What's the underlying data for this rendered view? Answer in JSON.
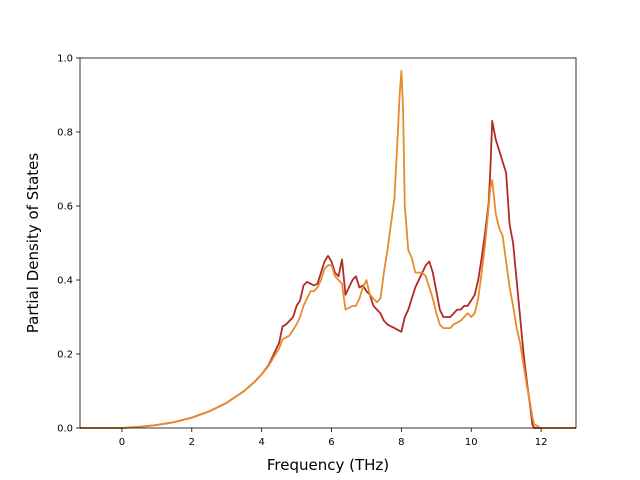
{
  "chart_data": {
    "type": "line",
    "title": "",
    "xlabel": "Frequency (THz)",
    "ylabel": "Partial Density of States",
    "xlim": [
      -1.2,
      13.0
    ],
    "ylim": [
      0.0,
      1.0
    ],
    "xticks": [
      0,
      2,
      4,
      6,
      8,
      10,
      12
    ],
    "yticks": [
      0.0,
      0.2,
      0.4,
      0.6,
      0.8,
      1.0
    ],
    "xtick_labels": [
      "0",
      "2",
      "4",
      "6",
      "8",
      "10",
      "12"
    ],
    "ytick_labels": [
      "0.0",
      "0.2",
      "0.4",
      "0.6",
      "0.8",
      "1.0"
    ],
    "grid": false,
    "legend": "none",
    "series": [
      {
        "color": "#b22a24",
        "x": [
          -1.2,
          -0.5,
          0.0,
          0.5,
          1.0,
          1.5,
          2.0,
          2.5,
          3.0,
          3.5,
          3.8,
          4.0,
          4.2,
          4.4,
          4.5,
          4.6,
          4.7,
          4.8,
          4.9,
          5.0,
          5.1,
          5.2,
          5.3,
          5.4,
          5.5,
          5.6,
          5.7,
          5.8,
          5.9,
          6.0,
          6.1,
          6.2,
          6.3,
          6.4,
          6.5,
          6.6,
          6.7,
          6.8,
          6.9,
          7.0,
          7.1,
          7.2,
          7.3,
          7.4,
          7.5,
          7.6,
          7.7,
          7.8,
          7.9,
          8.0,
          8.1,
          8.2,
          8.3,
          8.4,
          8.5,
          8.6,
          8.7,
          8.8,
          8.9,
          9.0,
          9.1,
          9.2,
          9.3,
          9.4,
          9.5,
          9.6,
          9.7,
          9.8,
          9.9,
          10.0,
          10.1,
          10.2,
          10.3,
          10.4,
          10.5,
          10.55,
          10.6,
          10.7,
          10.8,
          10.9,
          11.0,
          11.1,
          11.2,
          11.3,
          11.4,
          11.5,
          11.6,
          11.7,
          11.75,
          11.8,
          12.0,
          12.5,
          13.0
        ],
        "y": [
          0.0,
          0.0,
          0.0,
          0.003,
          0.008,
          0.016,
          0.028,
          0.045,
          0.068,
          0.1,
          0.125,
          0.145,
          0.17,
          0.21,
          0.23,
          0.275,
          0.28,
          0.29,
          0.3,
          0.33,
          0.345,
          0.385,
          0.395,
          0.39,
          0.385,
          0.39,
          0.42,
          0.45,
          0.465,
          0.45,
          0.42,
          0.41,
          0.455,
          0.36,
          0.38,
          0.4,
          0.41,
          0.38,
          0.385,
          0.37,
          0.36,
          0.33,
          0.32,
          0.31,
          0.29,
          0.28,
          0.275,
          0.27,
          0.265,
          0.26,
          0.3,
          0.32,
          0.35,
          0.38,
          0.4,
          0.42,
          0.44,
          0.45,
          0.42,
          0.37,
          0.32,
          0.3,
          0.3,
          0.3,
          0.31,
          0.32,
          0.32,
          0.33,
          0.33,
          0.345,
          0.36,
          0.4,
          0.46,
          0.53,
          0.61,
          0.7,
          0.83,
          0.78,
          0.75,
          0.72,
          0.69,
          0.55,
          0.5,
          0.4,
          0.3,
          0.2,
          0.12,
          0.05,
          0.01,
          0.0,
          0.0,
          0.0,
          0.0
        ]
      },
      {
        "color": "#e88a2e",
        "x": [
          -1.2,
          -0.5,
          0.0,
          0.5,
          1.0,
          1.5,
          2.0,
          2.5,
          3.0,
          3.5,
          3.8,
          4.0,
          4.2,
          4.4,
          4.5,
          4.6,
          4.7,
          4.8,
          4.9,
          5.0,
          5.1,
          5.2,
          5.3,
          5.4,
          5.5,
          5.6,
          5.7,
          5.8,
          5.9,
          6.0,
          6.1,
          6.2,
          6.3,
          6.4,
          6.5,
          6.6,
          6.7,
          6.8,
          6.9,
          7.0,
          7.1,
          7.2,
          7.3,
          7.4,
          7.5,
          7.6,
          7.7,
          7.8,
          7.9,
          7.95,
          8.0,
          8.05,
          8.1,
          8.2,
          8.3,
          8.4,
          8.5,
          8.6,
          8.7,
          8.8,
          8.9,
          9.0,
          9.1,
          9.2,
          9.3,
          9.4,
          9.5,
          9.6,
          9.7,
          9.8,
          9.9,
          10.0,
          10.1,
          10.2,
          10.3,
          10.4,
          10.5,
          10.55,
          10.6,
          10.7,
          10.8,
          10.9,
          11.0,
          11.1,
          11.2,
          11.3,
          11.4,
          11.5,
          11.6,
          11.7,
          11.75,
          11.8,
          12.0,
          12.5,
          13.0
        ],
        "y": [
          0.0,
          0.0,
          0.0,
          0.003,
          0.008,
          0.016,
          0.028,
          0.045,
          0.068,
          0.1,
          0.125,
          0.145,
          0.168,
          0.2,
          0.215,
          0.24,
          0.245,
          0.25,
          0.265,
          0.28,
          0.3,
          0.33,
          0.35,
          0.37,
          0.37,
          0.38,
          0.4,
          0.43,
          0.44,
          0.44,
          0.41,
          0.4,
          0.39,
          0.32,
          0.325,
          0.33,
          0.33,
          0.35,
          0.38,
          0.4,
          0.36,
          0.35,
          0.34,
          0.35,
          0.42,
          0.48,
          0.55,
          0.62,
          0.8,
          0.9,
          0.965,
          0.86,
          0.6,
          0.48,
          0.46,
          0.42,
          0.42,
          0.42,
          0.41,
          0.38,
          0.35,
          0.31,
          0.28,
          0.27,
          0.27,
          0.27,
          0.28,
          0.285,
          0.29,
          0.3,
          0.31,
          0.3,
          0.31,
          0.35,
          0.42,
          0.5,
          0.6,
          0.65,
          0.67,
          0.58,
          0.54,
          0.52,
          0.45,
          0.38,
          0.33,
          0.27,
          0.23,
          0.17,
          0.11,
          0.06,
          0.03,
          0.01,
          0.0,
          0.0,
          0.0
        ]
      }
    ]
  }
}
